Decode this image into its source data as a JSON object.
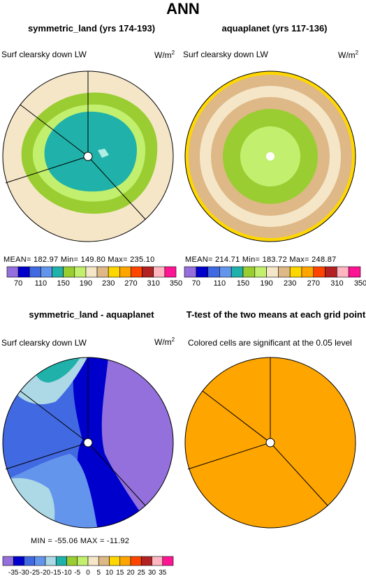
{
  "main_title": "ANN",
  "panels": [
    {
      "title": "symmetric_land (yrs 174-193)",
      "left_label": "Surf clearsky down LW",
      "units": "W/m",
      "units_sup": "2",
      "stats": "MEAN= 182.97    Min= 149.80    Max= 235.10"
    },
    {
      "title": "aquaplanet (yrs 117-136)",
      "left_label": "Surf clearsky down LW",
      "units": "W/m",
      "units_sup": "2",
      "stats": "MEAN= 214.71    Min= 183.72    Max= 248.87"
    },
    {
      "title": "symmetric_land - aquaplanet",
      "left_label": "Surf clearsky down LW",
      "units": "W/m",
      "units_sup": "2",
      "stats": "MIN = -55.06  MAX = -11.92"
    },
    {
      "title": "T-test of the two means at each grid point",
      "left_label": "Colored cells are significant at the 0.05 level"
    }
  ],
  "colorbars": {
    "abs": {
      "colors": [
        "#9370db",
        "#0000cd",
        "#4169e1",
        "#6495ed",
        "#20b2aa",
        "#9acd32",
        "#c2f06e",
        "#f5e6c8",
        "#deb887",
        "#ffd700",
        "#ffa500",
        "#ff4500",
        "#b22222",
        "#ffb6c1",
        "#ff1493"
      ],
      "labels": [
        "70",
        "110",
        "150",
        "190",
        "230",
        "270",
        "310",
        "350"
      ]
    },
    "diff": {
      "colors": [
        "#9370db",
        "#0000cd",
        "#4169e1",
        "#6495ed",
        "#add8e6",
        "#20b2aa",
        "#9acd32",
        "#c2f06e",
        "#f5e6c8",
        "#deb887",
        "#ffd700",
        "#ffa500",
        "#ff4500",
        "#b22222",
        "#ffb6c1",
        "#ff1493"
      ],
      "labels": [
        "-35",
        "-30",
        "-25",
        "-20",
        "-15",
        "-10",
        "-5",
        "0",
        "5",
        "10",
        "15",
        "20",
        "25",
        "30",
        "35"
      ]
    }
  },
  "chart_data": [
    {
      "type": "heatmap",
      "title": "symmetric_land (yrs 174-193)",
      "variable": "Surf clearsky down LW",
      "units": "W/m2",
      "projection": "polar",
      "mean": 182.97,
      "min": 149.8,
      "max": 235.1,
      "contour_levels": [
        70,
        90,
        110,
        130,
        150,
        170,
        190,
        210,
        230,
        250,
        270,
        290,
        310,
        330,
        350
      ]
    },
    {
      "type": "heatmap",
      "title": "aquaplanet (yrs 117-136)",
      "variable": "Surf clearsky down LW",
      "units": "W/m2",
      "projection": "polar",
      "mean": 214.71,
      "min": 183.72,
      "max": 248.87,
      "contour_levels": [
        70,
        90,
        110,
        130,
        150,
        170,
        190,
        210,
        230,
        250,
        270,
        290,
        310,
        330,
        350
      ]
    },
    {
      "type": "heatmap",
      "title": "symmetric_land - aquaplanet",
      "variable": "Surf clearsky down LW",
      "units": "W/m2",
      "projection": "polar",
      "min": -55.06,
      "max": -11.92,
      "contour_levels": [
        -35,
        -30,
        -25,
        -20,
        -15,
        -10,
        -5,
        0,
        5,
        10,
        15,
        20,
        25,
        30,
        35
      ]
    },
    {
      "type": "heatmap",
      "title": "T-test of the two means at each grid point",
      "projection": "polar",
      "note": "Colored cells are significant at the 0.05 level"
    }
  ]
}
